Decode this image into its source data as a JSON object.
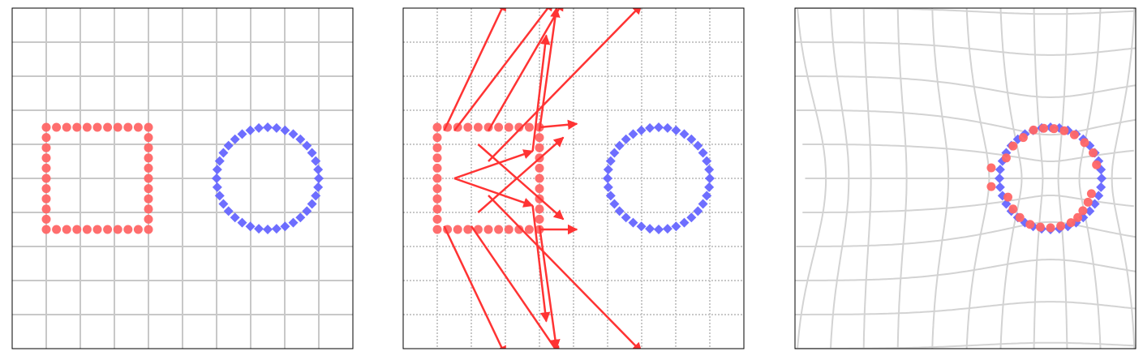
{
  "chart_data": [
    {
      "type": "scatter",
      "xlim": [
        -5,
        5
      ],
      "ylim": [
        -5,
        5
      ],
      "xticks": [
        -4,
        -3,
        -2,
        -1,
        0,
        1,
        2,
        3,
        4
      ],
      "yticks": [
        -4,
        -3,
        -2,
        -1,
        0,
        1,
        2,
        3,
        4
      ],
      "grid": true,
      "series": [
        {
          "color": "#ff6666",
          "marker": "circle",
          "x": [
            -4,
            -3.7,
            -3.4,
            -3.1,
            -2.8,
            -2.5,
            -2.2,
            -1.9,
            -1.6,
            -1.3,
            -1,
            -1,
            -1,
            -1,
            -1,
            -1,
            -1,
            -1,
            -1,
            -1,
            -1,
            -1.3,
            -1.6,
            -1.9,
            -2.2,
            -2.5,
            -2.8,
            -3.1,
            -3.4,
            -3.7,
            -4,
            -4,
            -4,
            -4,
            -4,
            -4,
            -4,
            -4,
            -4,
            -4
          ],
          "y": [
            -1.5,
            -1.5,
            -1.5,
            -1.5,
            -1.5,
            -1.5,
            -1.5,
            -1.5,
            -1.5,
            -1.5,
            -1.5,
            -1.2,
            -0.9,
            -0.6,
            -0.3,
            0,
            0.3,
            0.6,
            0.9,
            1.2,
            1.5,
            1.5,
            1.5,
            1.5,
            1.5,
            1.5,
            1.5,
            1.5,
            1.5,
            1.5,
            1.5,
            1.2,
            0.9,
            0.6,
            0.3,
            0,
            -0.3,
            -0.6,
            -0.9,
            -1.2
          ]
        },
        {
          "color": "#6666ff",
          "marker": "diamond",
          "x": [
            4,
            3.98,
            3.91,
            3.8,
            3.65,
            3.46,
            3.25,
            3.01,
            2.76,
            2.5,
            2.24,
            1.99,
            1.75,
            1.54,
            1.35,
            1.2,
            1.09,
            1.02,
            1,
            1.02,
            1.09,
            1.2,
            1.35,
            1.54,
            1.75,
            1.99,
            2.24,
            2.5,
            2.76,
            3.01,
            3.25,
            3.46,
            3.65,
            3.8,
            3.91,
            3.98
          ],
          "y": [
            0,
            0.26,
            0.51,
            0.75,
            0.96,
            1.15,
            1.3,
            1.41,
            1.48,
            1.5,
            1.48,
            1.41,
            1.3,
            1.15,
            0.96,
            0.75,
            0.51,
            0.26,
            0,
            -0.26,
            -0.51,
            -0.75,
            -0.96,
            -1.15,
            -1.3,
            -1.41,
            -1.48,
            -1.5,
            -1.48,
            -1.41,
            -1.3,
            -1.15,
            -0.96,
            -0.75,
            -0.51,
            -0.26
          ]
        }
      ]
    },
    {
      "type": "quiver",
      "xlim": [
        -5,
        5
      ],
      "ylim": [
        -5,
        5
      ],
      "xticks": [
        -4,
        -3,
        -2,
        -1,
        0,
        1,
        2,
        3,
        4
      ],
      "yticks": [
        -4,
        -3,
        -2,
        -1,
        0,
        1,
        2,
        3,
        4
      ],
      "grid": true,
      "series": [
        {
          "color": "#ff6666",
          "marker": "circle",
          "x": [
            -4,
            -3.7,
            -3.4,
            -3.1,
            -2.8,
            -2.5,
            -2.2,
            -1.9,
            -1.6,
            -1.3,
            -1,
            -1,
            -1,
            -1,
            -1,
            -1,
            -1,
            -1,
            -1,
            -1,
            -1,
            -1.3,
            -1.6,
            -1.9,
            -2.2,
            -2.5,
            -2.8,
            -3.1,
            -3.4,
            -3.7,
            -4,
            -4,
            -4,
            -4,
            -4,
            -4,
            -4,
            -4,
            -4,
            -4
          ],
          "y": [
            -1.5,
            -1.5,
            -1.5,
            -1.5,
            -1.5,
            -1.5,
            -1.5,
            -1.5,
            -1.5,
            -1.5,
            -1.5,
            -1.2,
            -0.9,
            -0.6,
            -0.3,
            0,
            0.3,
            0.6,
            0.9,
            1.2,
            1.5,
            1.5,
            1.5,
            1.5,
            1.5,
            1.5,
            1.5,
            1.5,
            1.5,
            1.5,
            1.5,
            1.2,
            0.9,
            0.6,
            0.3,
            0,
            -0.3,
            -0.6,
            -0.9,
            -1.2
          ]
        },
        {
          "color": "#6666ff",
          "marker": "diamond",
          "x": [
            4,
            3.98,
            3.91,
            3.8,
            3.65,
            3.46,
            3.25,
            3.01,
            2.76,
            2.5,
            2.24,
            1.99,
            1.75,
            1.54,
            1.35,
            1.2,
            1.09,
            1.02,
            1,
            1.02,
            1.09,
            1.2,
            1.35,
            1.54,
            1.75,
            1.99,
            2.24,
            2.5,
            2.76,
            3.01,
            3.25,
            3.46,
            3.65,
            3.8,
            3.91,
            3.98
          ],
          "y": [
            0,
            0.26,
            0.51,
            0.75,
            0.96,
            1.15,
            1.3,
            1.41,
            1.48,
            1.5,
            1.48,
            1.41,
            1.3,
            1.15,
            0.96,
            0.75,
            0.51,
            0.26,
            0,
            -0.26,
            -0.51,
            -0.75,
            -0.96,
            -1.15,
            -1.3,
            -1.41,
            -1.48,
            -1.5,
            -1.48,
            -1.41,
            -1.3,
            -1.15,
            -0.96,
            -0.75,
            -0.51,
            -0.26
          ]
        }
      ],
      "arrows": {
        "color": "#ff3333",
        "x": [
          -3.8,
          -3.5,
          -2.5,
          -1,
          -2.5,
          -1,
          -1,
          -3.8,
          -3,
          -1,
          -2.5,
          -1.2,
          -1.2,
          -2.8,
          -2.8,
          -3.5,
          -3.5
        ],
        "y": [
          1.4,
          1.4,
          1.4,
          1.4,
          0.5,
          1.5,
          -1.5,
          -1.4,
          -1.4,
          -1.4,
          -0.5,
          0.8,
          -0.8,
          -1,
          1,
          0,
          0
        ],
        "u": [
          1.8,
          2.9,
          2.2,
          0.5,
          4.5,
          1.1,
          1.1,
          1.8,
          2.6,
          0.5,
          4.5,
          0.4,
          0.4,
          2.5,
          2.5,
          2.3,
          2.3
        ],
        "v": [
          3.8,
          3.8,
          3.8,
          3.6,
          4.6,
          0.1,
          0,
          -3.8,
          -3.8,
          -3.6,
          -4.6,
          3.4,
          -3.4,
          2.2,
          -2.2,
          0.8,
          -0.8
        ]
      }
    },
    {
      "type": "scatter",
      "xlim": [
        -5,
        5
      ],
      "ylim": [
        -5,
        5
      ],
      "grid": false,
      "series": [
        {
          "color": "#6666ff",
          "marker": "diamond",
          "x": [
            4,
            3.98,
            3.91,
            3.8,
            3.65,
            3.46,
            3.25,
            3.01,
            2.76,
            2.5,
            2.24,
            1.99,
            1.75,
            1.54,
            1.35,
            1.2,
            1.09,
            1.02,
            1,
            1.02,
            1.09,
            1.2,
            1.35,
            1.54,
            1.75,
            1.99,
            2.24,
            2.5,
            2.76,
            3.01,
            3.25,
            3.46,
            3.65,
            3.8,
            3.91,
            3.98
          ],
          "y": [
            0,
            0.26,
            0.51,
            0.75,
            0.96,
            1.15,
            1.3,
            1.41,
            1.48,
            1.5,
            1.48,
            1.41,
            1.3,
            1.15,
            0.96,
            0.75,
            0.51,
            0.26,
            0,
            -0.26,
            -0.51,
            -0.75,
            -0.96,
            -1.15,
            -1.3,
            -1.41,
            -1.48,
            -1.5,
            -1.48,
            -1.41,
            -1.3,
            -1.15,
            -0.96,
            -0.75,
            -0.51,
            -0.26
          ]
        },
        {
          "color": "#ff6666",
          "marker": "circle",
          "x": [
            2,
            2.3,
            2.6,
            2.9,
            3.2,
            3.5,
            3.75,
            3.85,
            3.7,
            3.6,
            3.45,
            3.3,
            3.1,
            2.8,
            2.5,
            2.2,
            1.9,
            1.6,
            1.4,
            1.25,
            0.76,
            0.76,
            1.2,
            1.4,
            1.7
          ],
          "y": [
            1.42,
            1.47,
            1.46,
            1.4,
            1.28,
            1.05,
            0.75,
            0.4,
            -0.45,
            -0.7,
            -0.95,
            -1.15,
            -1.3,
            -1.4,
            -1.45,
            -1.43,
            -1.35,
            -1.15,
            -0.9,
            -0.55,
            0.31,
            -0.24,
            0.6,
            0.95,
            1.2
          ]
        }
      ]
    }
  ]
}
